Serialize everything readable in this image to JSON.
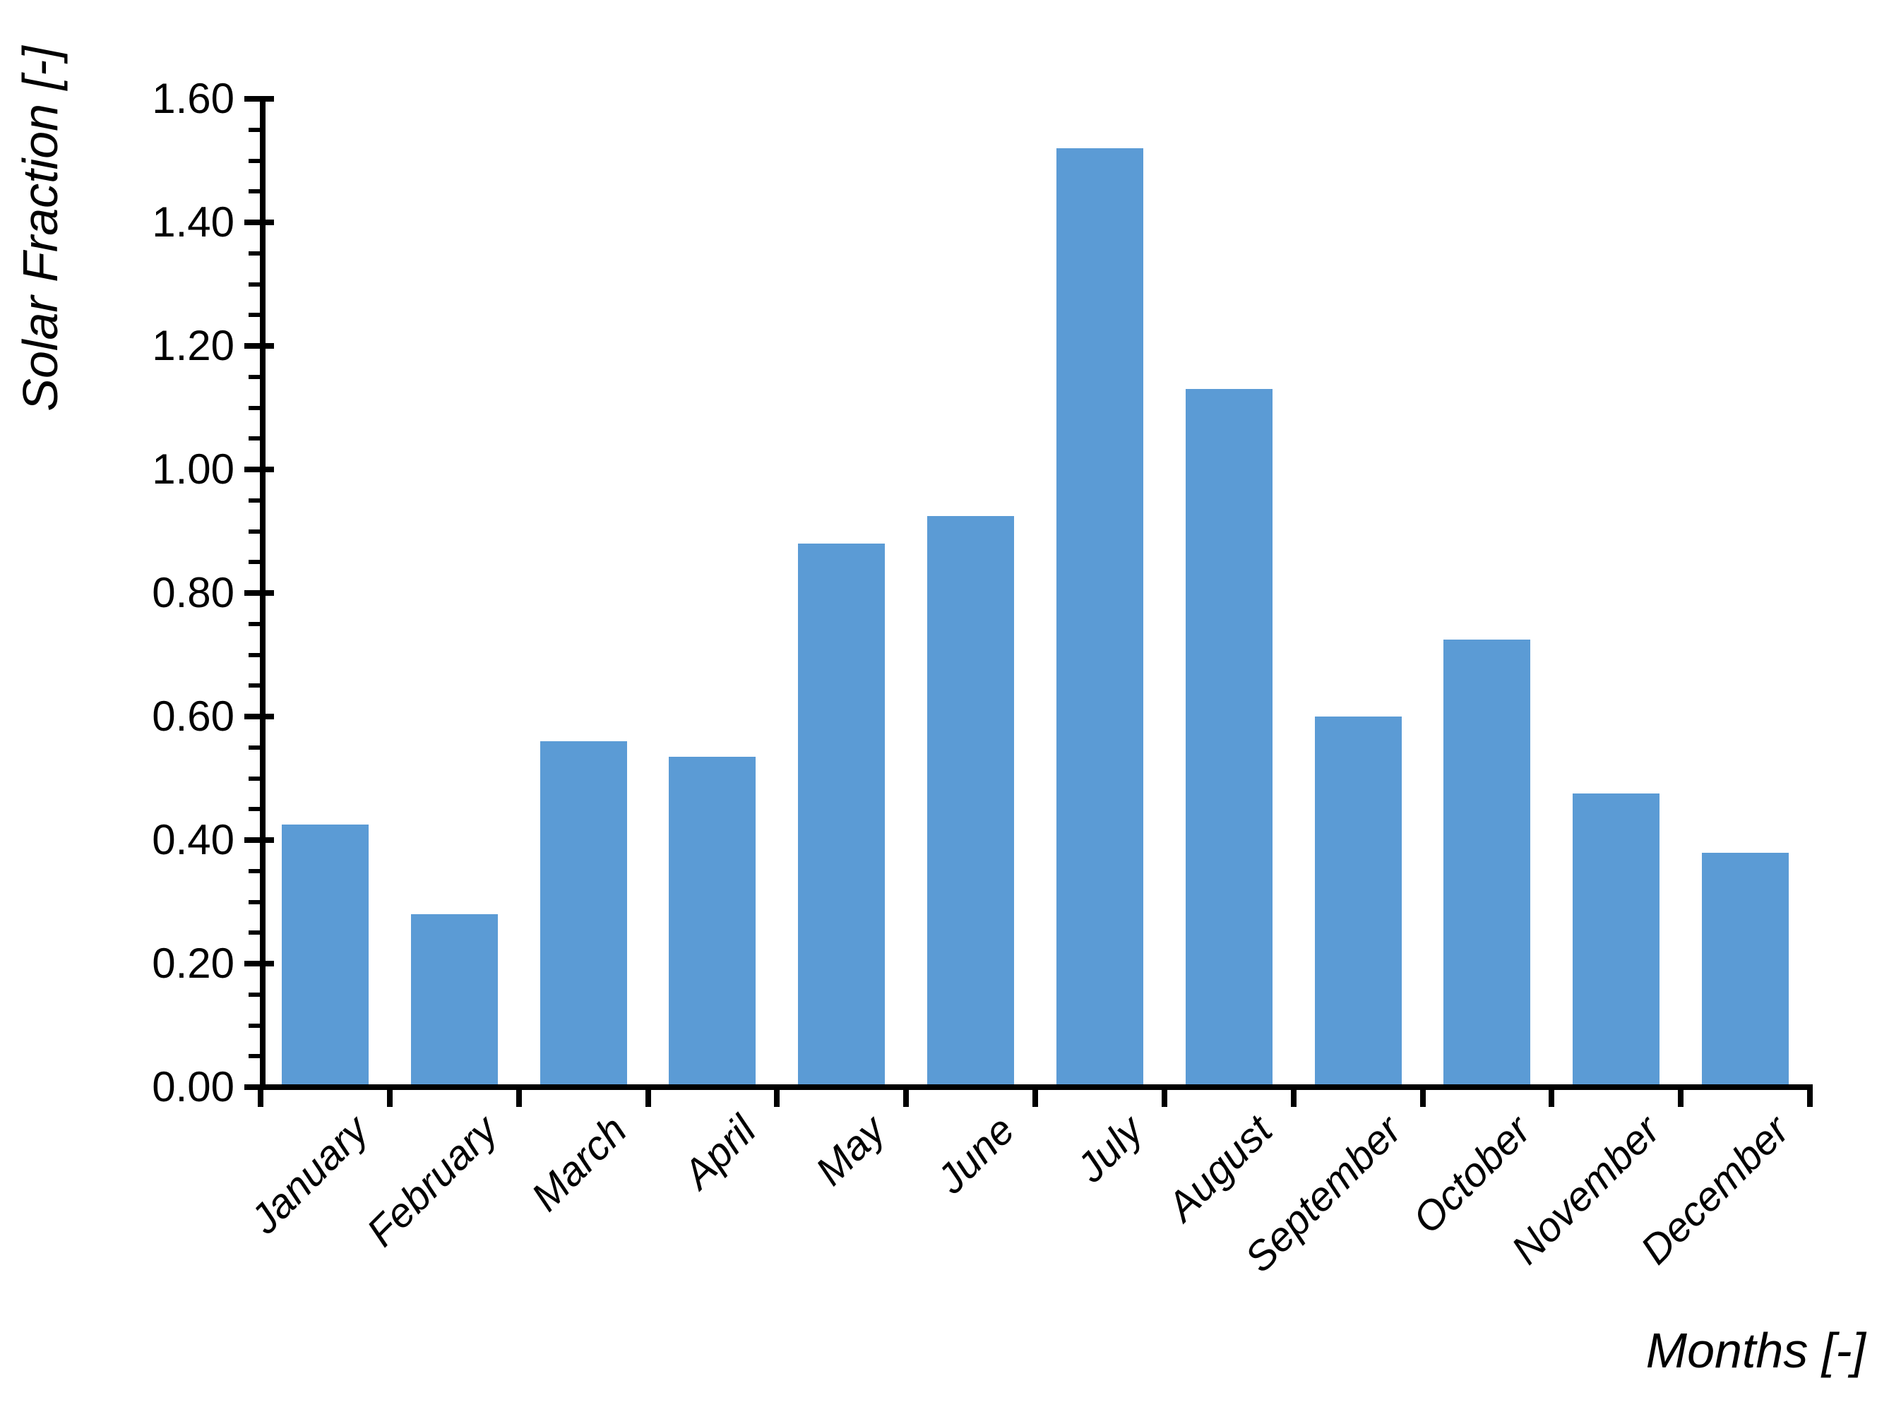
{
  "chart_data": {
    "type": "bar",
    "title": "",
    "xlabel": "Months [-]",
    "ylabel": "Solar Fraction [-]",
    "categories": [
      "January",
      "February",
      "March",
      "April",
      "May",
      "June",
      "July",
      "August",
      "September",
      "October",
      "November",
      "December"
    ],
    "values": [
      0.425,
      0.28,
      0.56,
      0.535,
      0.88,
      0.925,
      1.52,
      1.13,
      0.6,
      0.725,
      0.475,
      0.38
    ],
    "ylim": [
      0,
      1.6
    ],
    "ytick_step": 0.2,
    "ytick_labels": [
      "0.00",
      "0.20",
      "0.40",
      "0.60",
      "0.80",
      "1.00",
      "1.20",
      "1.40",
      "1.60"
    ],
    "y_minor_tick_step": 0.05,
    "bar_color": "#5B9BD5",
    "axis_color": "#000000",
    "text_color": "#000000",
    "legend": "none",
    "grid": "off"
  }
}
